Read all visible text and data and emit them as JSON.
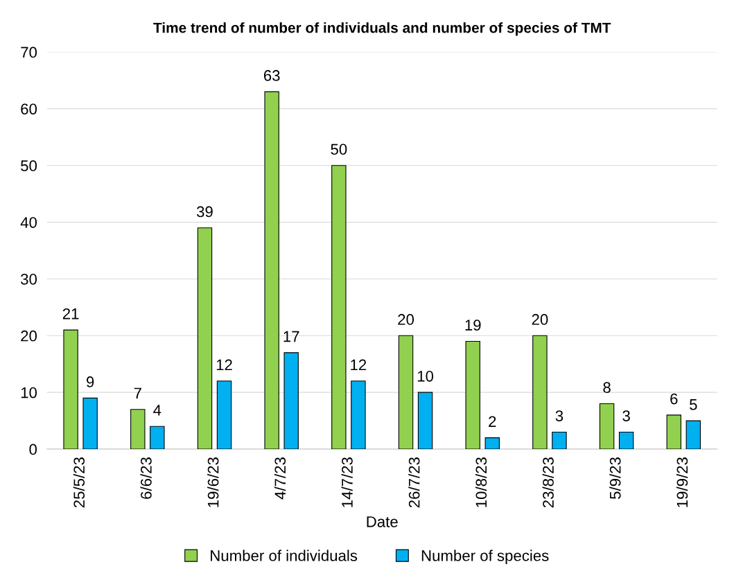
{
  "chart_data": {
    "type": "bar",
    "title": "Time trend of number of individuals and number of species of TMT",
    "xlabel": "Date",
    "categories": [
      "25/5/23",
      "6/6/23",
      "19/6/23",
      "4/7/23",
      "14/7/23",
      "26/7/23",
      "10/8/23",
      "23/8/23",
      "5/9/23",
      "19/9/23"
    ],
    "series": [
      {
        "name": "Number of individuals",
        "color": "#92d050",
        "values": [
          21,
          7,
          39,
          63,
          50,
          20,
          19,
          20,
          8,
          6
        ]
      },
      {
        "name": "Number of species",
        "color": "#00b0f0",
        "values": [
          9,
          4,
          12,
          17,
          12,
          10,
          2,
          3,
          3,
          5
        ]
      }
    ],
    "ylim": [
      0,
      70
    ],
    "yticks": [
      0,
      10,
      20,
      30,
      40,
      50,
      60,
      70
    ],
    "grid": "y",
    "legend": "bottom",
    "data_labels": true
  }
}
